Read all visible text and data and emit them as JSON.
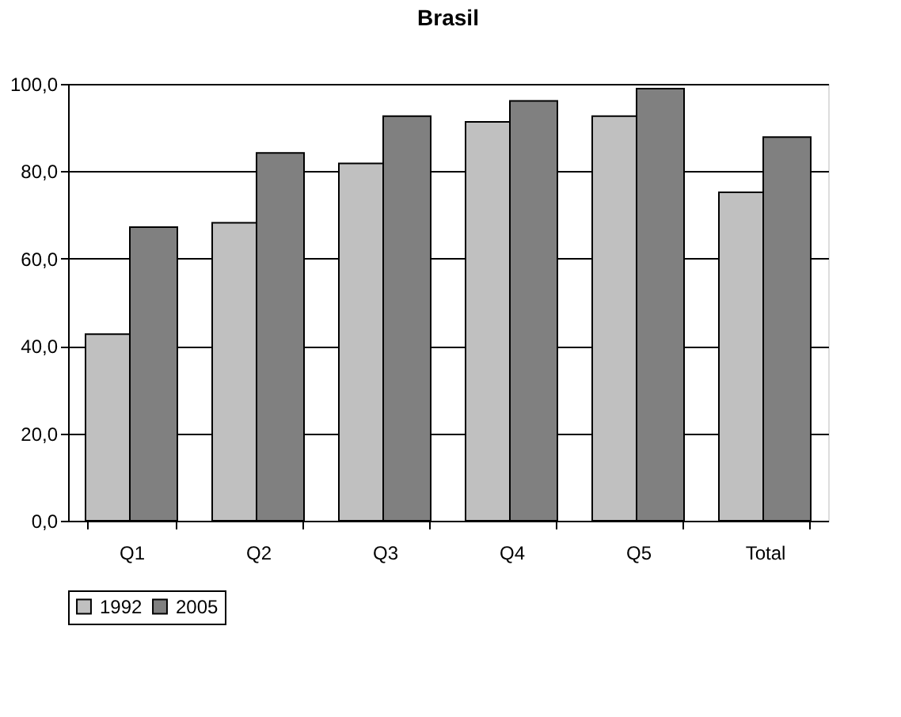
{
  "chart_data": {
    "type": "bar",
    "title": "Brasil",
    "categories": [
      "Q1",
      "Q2",
      "Q3",
      "Q4",
      "Q5",
      "Total"
    ],
    "series": [
      {
        "name": "1992",
        "color": "#c0c0c0",
        "values": [
          42.7,
          68.2,
          81.8,
          91.3,
          92.6,
          75.2
        ]
      },
      {
        "name": "2005",
        "color": "#808080",
        "values": [
          67.2,
          84.2,
          92.6,
          96.1,
          98.9,
          87.8
        ]
      }
    ],
    "ylim": [
      0,
      100
    ],
    "yticks": [
      {
        "value": 0,
        "label": "0,0"
      },
      {
        "value": 20,
        "label": "20,0"
      },
      {
        "value": 40,
        "label": "40,0"
      },
      {
        "value": 60,
        "label": "60,0"
      },
      {
        "value": 80,
        "label": "80,0"
      },
      {
        "value": 100,
        "label": "100,0"
      }
    ],
    "grid": "y",
    "legend": "bottom"
  }
}
